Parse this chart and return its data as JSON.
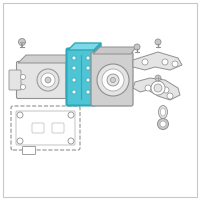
{
  "background_color": "#ffffff",
  "border_color": "#c8c8c8",
  "highlight_fill": "#4ec5d4",
  "highlight_stroke": "#2ea8b8",
  "gray_fill": "#d0d0d0",
  "gray_stroke": "#909090",
  "light_gray": "#e4e4e4",
  "white": "#ffffff",
  "outline_color": "#aaaaaa",
  "screw_fill": "#c8c8c8"
}
